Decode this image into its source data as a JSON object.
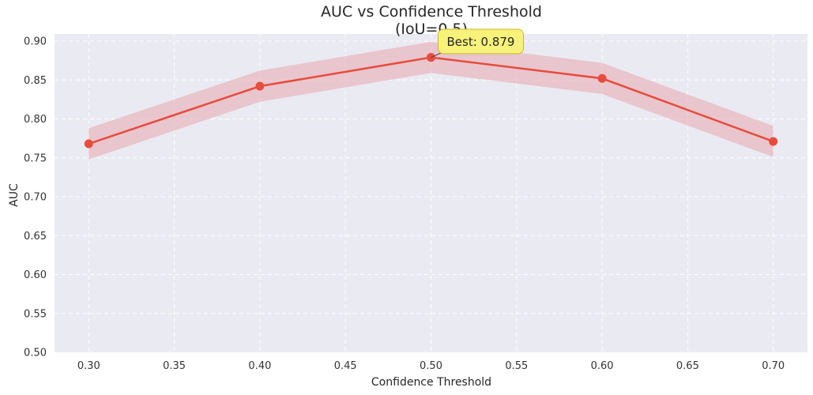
{
  "chart_data": {
    "type": "line",
    "title": "AUC vs Confidence Threshold",
    "subtitle": "(IoU=0.5)",
    "xlabel": "Confidence Threshold",
    "ylabel": "AUC",
    "xlim": [
      0.28,
      0.72
    ],
    "ylim": [
      0.5,
      0.9
    ],
    "xticks": [
      "0.30",
      "0.35",
      "0.40",
      "0.45",
      "0.50",
      "0.55",
      "0.60",
      "0.65",
      "0.70"
    ],
    "yticks": [
      "0.50",
      "0.55",
      "0.60",
      "0.65",
      "0.70",
      "0.75",
      "0.80",
      "0.85",
      "0.90"
    ],
    "grid": true,
    "series": [
      {
        "x": [
          0.3,
          0.4,
          0.5,
          0.6,
          0.7
        ],
        "y": [
          0.768,
          0.842,
          0.879,
          0.852,
          0.771
        ],
        "lower": [
          0.748,
          0.822,
          0.859,
          0.832,
          0.751
        ],
        "upper": [
          0.788,
          0.862,
          0.899,
          0.872,
          0.791
        ],
        "color": "#e74c3c",
        "band_color": "#e8a0a8"
      }
    ],
    "annotation": {
      "text": "Best: 0.879",
      "x": 0.5,
      "y": 0.879,
      "box_color": "#f7f27a",
      "edge_color": "#c9b82e"
    },
    "background_color": "#eaeaf2",
    "grid_color": "#ffffff"
  }
}
